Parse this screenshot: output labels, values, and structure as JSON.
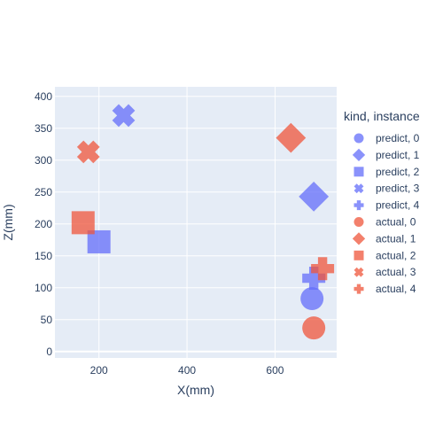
{
  "chart_data": {
    "type": "scatter",
    "xlabel": "X(mm)",
    "ylabel": "Z(mm)",
    "xlim": [
      100,
      740
    ],
    "ylim": [
      -10,
      415
    ],
    "xticks": [
      200,
      400,
      600
    ],
    "yticks": [
      0,
      50,
      100,
      150,
      200,
      250,
      300,
      350,
      400
    ],
    "grid": true,
    "legend_title": "kind, instance",
    "legend_position": "right",
    "colors": {
      "predict": "#636efa",
      "actual": "#ef553b",
      "plot_bg": "#e5ecf6",
      "grid": "#ffffff",
      "text": "#2a3f5f"
    },
    "series": [
      {
        "name": "predict, 0",
        "kind": "predict",
        "symbol": "circle",
        "x": [
          684
        ],
        "y": [
          83
        ]
      },
      {
        "name": "predict, 1",
        "kind": "predict",
        "symbol": "diamond",
        "x": [
          688
        ],
        "y": [
          243
        ]
      },
      {
        "name": "predict, 2",
        "kind": "predict",
        "symbol": "square",
        "x": [
          200
        ],
        "y": [
          172
        ]
      },
      {
        "name": "predict, 3",
        "kind": "predict",
        "symbol": "x",
        "x": [
          256
        ],
        "y": [
          370
        ]
      },
      {
        "name": "predict, 4",
        "kind": "predict",
        "symbol": "cross",
        "x": [
          688
        ],
        "y": [
          115
        ]
      },
      {
        "name": "actual, 0",
        "kind": "actual",
        "symbol": "circle",
        "x": [
          688
        ],
        "y": [
          37
        ]
      },
      {
        "name": "actual, 1",
        "kind": "actual",
        "symbol": "diamond",
        "x": [
          636
        ],
        "y": [
          335
        ]
      },
      {
        "name": "actual, 2",
        "kind": "actual",
        "symbol": "square",
        "x": [
          164
        ],
        "y": [
          202
        ]
      },
      {
        "name": "actual, 3",
        "kind": "actual",
        "symbol": "x",
        "x": [
          176
        ],
        "y": [
          313
        ]
      },
      {
        "name": "actual, 4",
        "kind": "actual",
        "symbol": "cross",
        "x": [
          708
        ],
        "y": [
          130
        ]
      }
    ]
  }
}
